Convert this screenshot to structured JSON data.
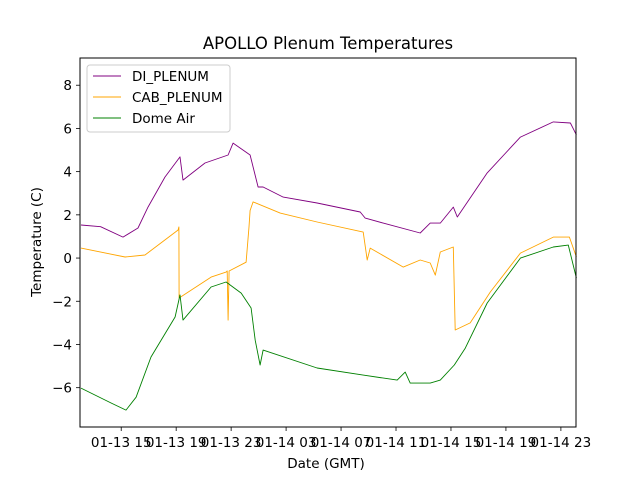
{
  "chart_data": {
    "type": "line",
    "title": "APOLLO Plenum Temperatures",
    "xlabel": "Date (GMT)",
    "ylabel": "Temperature (C)",
    "x_units": "hours since 01-13 00:00 GMT",
    "xlim": [
      12.0,
      48.1
    ],
    "ylim": [
      -7.82,
      9.26
    ],
    "xticks": [
      {
        "value": 15,
        "label": "01-13 15"
      },
      {
        "value": 19,
        "label": "01-13 19"
      },
      {
        "value": 23,
        "label": "01-13 23"
      },
      {
        "value": 27,
        "label": "01-14 03"
      },
      {
        "value": 31,
        "label": "01-14 07"
      },
      {
        "value": 35,
        "label": "01-14 11"
      },
      {
        "value": 39,
        "label": "01-14 15"
      },
      {
        "value": 43,
        "label": "01-14 19"
      },
      {
        "value": 47,
        "label": "01-14 23"
      }
    ],
    "yticks": [
      {
        "value": -6,
        "label": "−6"
      },
      {
        "value": -4,
        "label": "−4"
      },
      {
        "value": -2,
        "label": "−2"
      },
      {
        "value": 0,
        "label": "0"
      },
      {
        "value": 2,
        "label": "2"
      },
      {
        "value": 4,
        "label": "4"
      },
      {
        "value": 6,
        "label": "6"
      },
      {
        "value": 8,
        "label": "8"
      }
    ],
    "grid": false,
    "legend_position": "top-left",
    "series": [
      {
        "name": "DI_PLENUM",
        "color": "#800080",
        "x": [
          12.07,
          13.5,
          15.13,
          16.22,
          16.95,
          18.19,
          19.28,
          19.5,
          21.1,
          22.78,
          23.14,
          24.38,
          24.96,
          25.33,
          26.79,
          29.26,
          32.39,
          32.76,
          34.07,
          36.76,
          37.49,
          38.22,
          39.17,
          39.46,
          41.64,
          44.05,
          46.45,
          47.69,
          48.13
        ],
        "y": [
          1.53,
          1.45,
          0.97,
          1.39,
          2.36,
          3.75,
          4.68,
          3.61,
          4.4,
          4.77,
          5.32,
          4.77,
          3.29,
          3.29,
          2.82,
          2.55,
          2.13,
          1.85,
          1.62,
          1.16,
          1.62,
          1.62,
          2.36,
          1.9,
          3.94,
          5.6,
          6.3,
          6.25,
          5.7
        ]
      },
      {
        "name": "CAB_PLENUM",
        "color": "#ffa500",
        "x": [
          12.07,
          15.28,
          16.73,
          19.14,
          19.2,
          19.21,
          21.54,
          22.63,
          22.71,
          22.78,
          22.85,
          24.09,
          24.3,
          24.38,
          24.6,
          26.57,
          29.26,
          32.61,
          32.9,
          33.12,
          35.53,
          36.76,
          37.49,
          37.86,
          38.22,
          39.17,
          39.31,
          40.4,
          41.86,
          44.05,
          46.45,
          47.62,
          48.13
        ],
        "y": [
          0.46,
          0.05,
          0.14,
          1.3,
          1.44,
          -1.85,
          -0.88,
          -0.65,
          -0.6,
          -2.87,
          -0.6,
          -0.19,
          1.44,
          2.2,
          2.6,
          2.08,
          1.67,
          1.2,
          -0.09,
          0.46,
          -0.42,
          -0.09,
          -0.23,
          -0.79,
          0.28,
          0.51,
          -3.33,
          -3.0,
          -1.57,
          0.23,
          0.97,
          0.97,
          0.05
        ]
      },
      {
        "name": "Dome Air",
        "color": "#008000",
        "x": [
          12.07,
          14.26,
          15.35,
          16.08,
          17.17,
          18.92,
          19.28,
          19.5,
          21.54,
          22.63,
          23.73,
          24.45,
          24.75,
          25.11,
          25.33,
          29.26,
          32.61,
          35.09,
          35.67,
          36.03,
          37.49,
          38.22,
          39.24,
          40.04,
          41.64,
          44.05,
          46.45,
          47.54,
          48.13
        ],
        "y": [
          -6.02,
          -6.71,
          -7.04,
          -6.44,
          -4.58,
          -2.73,
          -1.71,
          -2.87,
          -1.34,
          -1.11,
          -1.62,
          -2.31,
          -3.8,
          -4.95,
          -4.26,
          -5.09,
          -5.42,
          -5.65,
          -5.28,
          -5.79,
          -5.79,
          -5.65,
          -4.95,
          -4.17,
          -2.08,
          0.0,
          0.51,
          0.6,
          -0.93
        ]
      }
    ]
  }
}
